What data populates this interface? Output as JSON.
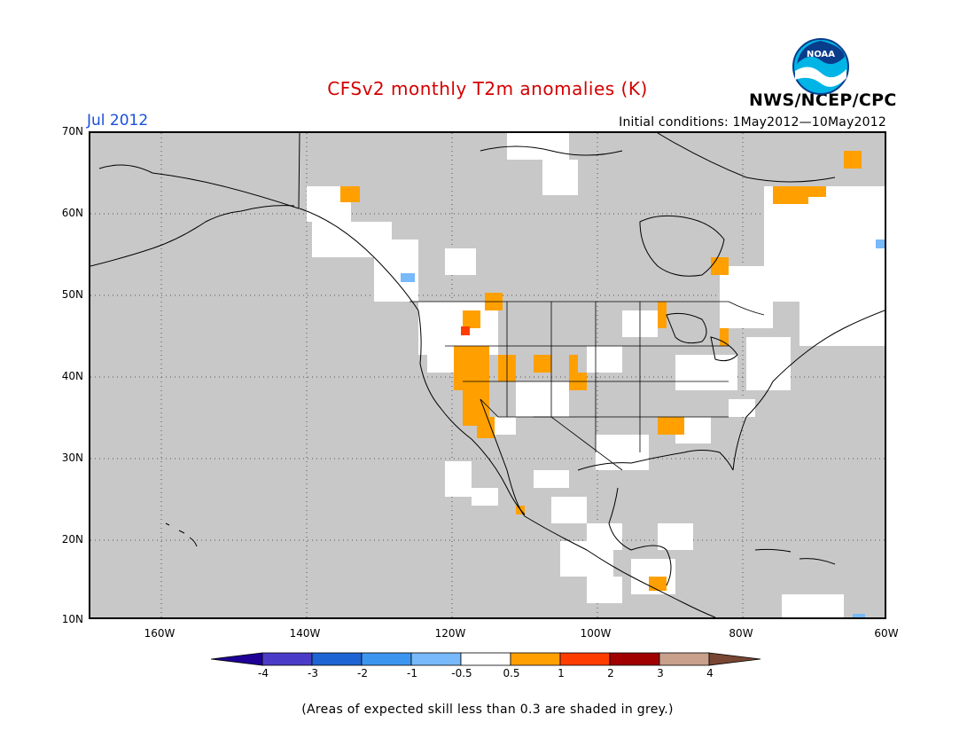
{
  "header": {
    "title": "CFSv2 monthly T2m anomalies (K)",
    "valid_month": "Jul 2012",
    "initial_conditions": "Initial conditions: 1May2012—10May2012",
    "agency": "NWS/NCEP/CPC",
    "logo_text": "NOAA"
  },
  "map": {
    "lat_labels": [
      "70N",
      "60N",
      "50N",
      "40N",
      "30N",
      "20N",
      "10N"
    ],
    "lon_labels": [
      "160W",
      "140W",
      "120W",
      "100W",
      "80W",
      "60W"
    ],
    "background_color": "#c8c8c8",
    "land_skill_color": "#ffffff"
  },
  "legend": {
    "labels": [
      "-4",
      "-3",
      "-2",
      "-1",
      "-0.5",
      "0.5",
      "1",
      "2",
      "3",
      "4"
    ],
    "colors": [
      "#1e0096",
      "#4b3cc8",
      "#1e64d2",
      "#3c96f0",
      "#78b9fa",
      "#ffffff",
      "#ffa000",
      "#ff3c00",
      "#a00000",
      "#c8a08c",
      "#784632"
    ]
  },
  "footnote": "(Areas of expected skill less than 0.3 are shaded in grey.)"
}
